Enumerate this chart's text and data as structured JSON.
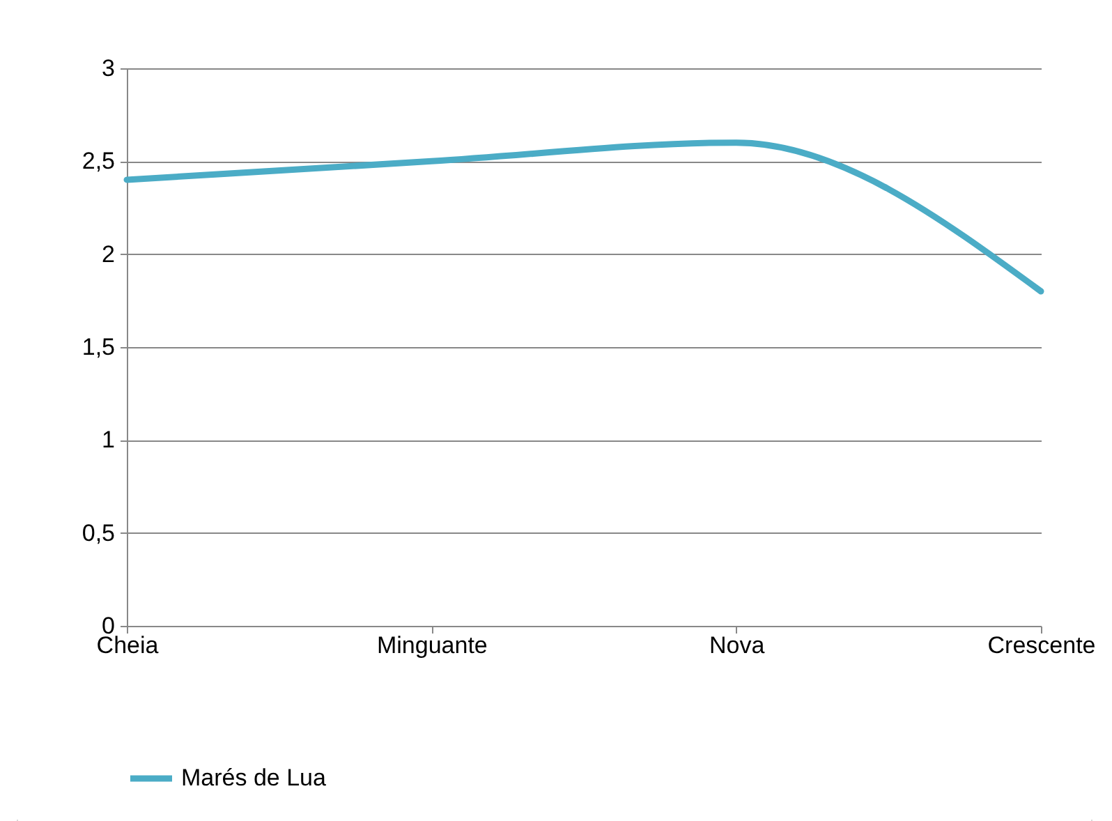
{
  "chart_data": {
    "type": "line",
    "categories": [
      "Cheia",
      "Minguante",
      "Nova",
      "Crescente"
    ],
    "series": [
      {
        "name": "Marés de Lua",
        "color": "#4bacc6",
        "values": [
          2.4,
          2.5,
          2.6,
          1.8
        ]
      }
    ],
    "ylim": [
      0,
      3
    ],
    "yticks": [
      0,
      {
        "value": 0.5,
        "label": "0,5"
      },
      1,
      {
        "value": 1.5,
        "label": "1,5"
      },
      2,
      {
        "value": 2.5,
        "label": "2,5"
      },
      3
    ],
    "grid": "y",
    "legend": "bottom",
    "marker": "none",
    "line_style": "solid"
  }
}
